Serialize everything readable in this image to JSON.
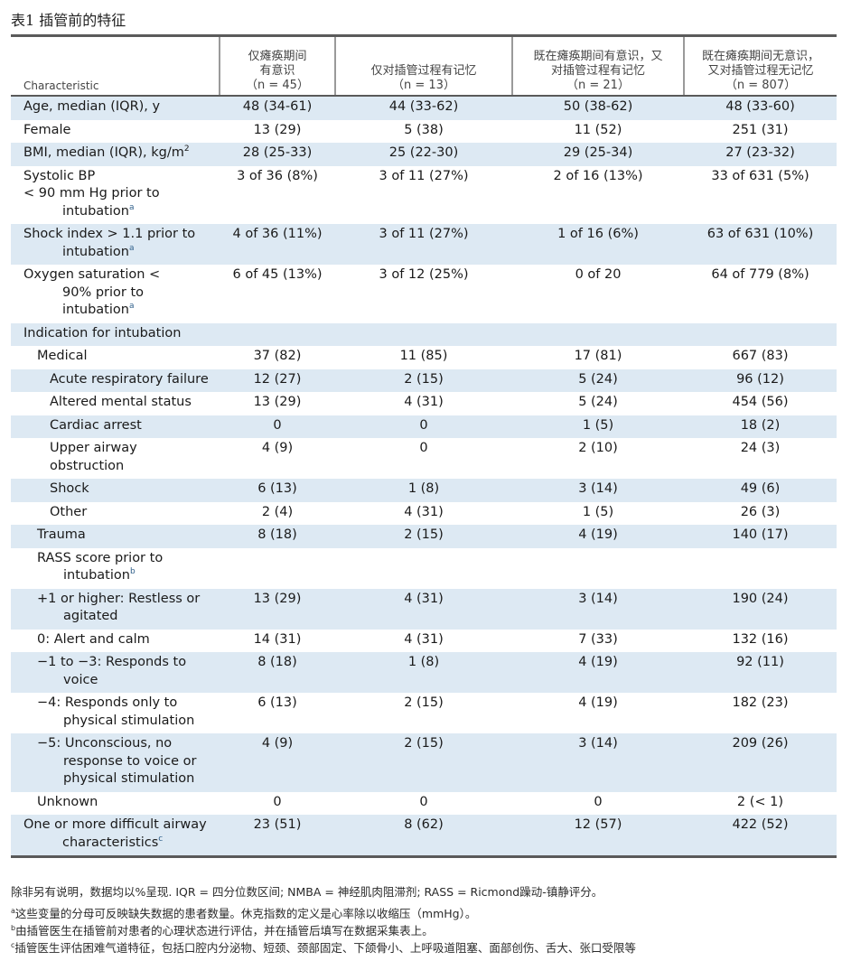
{
  "title": "表1  插管前的特征",
  "header": {
    "label": "Characteristic",
    "cols": [
      {
        "line1": "仅瘫痪期间",
        "line2": "有意识",
        "n": "（n = 45）"
      },
      {
        "line1": "仅对插管过程有记忆",
        "line2": "",
        "n": "（n = 13）"
      },
      {
        "line1": "既在瘫痪期间有意识，又",
        "line2": "对插管过程有记忆",
        "n": "（n = 21）"
      },
      {
        "line1": "既在瘫痪期间无意识，",
        "line2": "又对插管过程无记忆",
        "n": "（n = 807）"
      }
    ]
  },
  "rows": {
    "age": {
      "label": "Age, median (IQR), y",
      "v": [
        "48 (34-61)",
        "44 (33-62)",
        "50 (38-62)",
        "48 (33-60)"
      ]
    },
    "female": {
      "label": "Female",
      "v": [
        "13 (29)",
        "5 (38)",
        "11 (52)",
        "251 (31)"
      ]
    },
    "bmi": {
      "label": "BMI, median (IQR), kg/m",
      "sup": "2",
      "v": [
        "28 (25-33)",
        "25 (22-30)",
        "29 (25-34)",
        "27 (23-32)"
      ]
    },
    "sbp": {
      "l1": "Systolic BP",
      "l2": "< 90 mm Hg prior to",
      "l3": "intubation",
      "sup": "a",
      "v": [
        "3 of 36 (8%)",
        "3 of 11 (27%)",
        "2 of 16 (13%)",
        "33 of 631 (5%)"
      ]
    },
    "shock_index": {
      "l1": "Shock index > 1.1 prior to",
      "l2": "intubation",
      "sup": "a",
      "v": [
        "4 of 36 (11%)",
        "3 of 11 (27%)",
        "1 of 16 (6%)",
        "63 of 631 (10%)"
      ]
    },
    "oxygen": {
      "l1": "Oxygen saturation <",
      "l2": "90% prior to",
      "l3": "intubation",
      "sup": "a",
      "v": [
        "6 of 45 (13%)",
        "3 of 12 (25%)",
        "0 of 20",
        "64 of 779 (8%)"
      ]
    },
    "indication": {
      "label": "Indication for intubation"
    },
    "medical": {
      "label": "Medical",
      "v": [
        "37 (82)",
        "11 (85)",
        "17 (81)",
        "667 (83)"
      ]
    },
    "arf": {
      "label": "Acute respiratory failure",
      "v": [
        "12 (27)",
        "2 (15)",
        "5 (24)",
        "96 (12)"
      ]
    },
    "ams": {
      "label": "Altered mental status",
      "v": [
        "13 (29)",
        "4 (31)",
        "5 (24)",
        "454 (56)"
      ]
    },
    "cardiac": {
      "label": "Cardiac arrest",
      "v": [
        "0",
        "0",
        "1 (5)",
        "18 (2)"
      ]
    },
    "uao": {
      "l1": "Upper airway",
      "l2": "obstruction",
      "v": [
        "4 (9)",
        "0",
        "2 (10)",
        "24 (3)"
      ]
    },
    "shock": {
      "label": "Shock",
      "v": [
        "6 (13)",
        "1 (8)",
        "3 (14)",
        "49 (6)"
      ]
    },
    "other": {
      "label": "Other",
      "v": [
        "2 (4)",
        "4 (31)",
        "1 (5)",
        "26 (3)"
      ]
    },
    "trauma": {
      "label": "Trauma",
      "v": [
        "8 (18)",
        "2 (15)",
        "4 (19)",
        "140 (17)"
      ]
    },
    "rass": {
      "l1": "RASS score prior to",
      "l2": "intubation",
      "sup": "b"
    },
    "rass_p1": {
      "l1": "+1 or higher: Restless or",
      "l2": "agitated",
      "v": [
        "13 (29)",
        "4 (31)",
        "3 (14)",
        "190 (24)"
      ]
    },
    "rass_0": {
      "label": "0: Alert and calm",
      "v": [
        "14 (31)",
        "4 (31)",
        "7 (33)",
        "132 (16)"
      ]
    },
    "rass_m13": {
      "l1": "−1 to −3: Responds to",
      "l2": "voice",
      "v": [
        "8 (18)",
        "1 (8)",
        "4 (19)",
        "92 (11)"
      ]
    },
    "rass_m4": {
      "l1": "−4: Responds only to",
      "l2": "physical stimulation",
      "v": [
        "6 (13)",
        "2 (15)",
        "4 (19)",
        "182 (23)"
      ]
    },
    "rass_m5": {
      "l1": "−5: Unconscious, no",
      "l2": "response to voice or",
      "l3": "physical stimulation",
      "v": [
        "4 (9)",
        "2 (15)",
        "3 (14)",
        "209 (26)"
      ]
    },
    "unknown": {
      "label": "Unknown",
      "v": [
        "0",
        "0",
        "0",
        "2 (< 1)"
      ]
    },
    "airway": {
      "l1": "One or more difficult airway",
      "l2": "characteristics",
      "sup": "c",
      "v": [
        "23 (51)",
        "8 (62)",
        "12 (57)",
        "422 (52)"
      ]
    }
  },
  "notes": {
    "general": "除非另有说明，数据均以%呈现. IQR = 四分位数区间; NMBA = 神经肌肉阻滞剂; RASS = Ricmond躁动-镇静评分。",
    "a_mark": "a",
    "a": "这些变量的分母可反映缺失数据的患者数量。休克指数的定义是心率除以收缩压（mmHg）。",
    "b_mark": "b",
    "b": "由插管医生在插管前对患者的心理状态进行评估，并在插管后填写在数据采集表上。",
    "c_mark": "c",
    "c": "插管医生评估困难气道特征，包括口腔内分泌物、短颈、颈部固定、下颌骨小、上呼吸道阻塞、面部创伤、舌大、张口受限等"
  }
}
